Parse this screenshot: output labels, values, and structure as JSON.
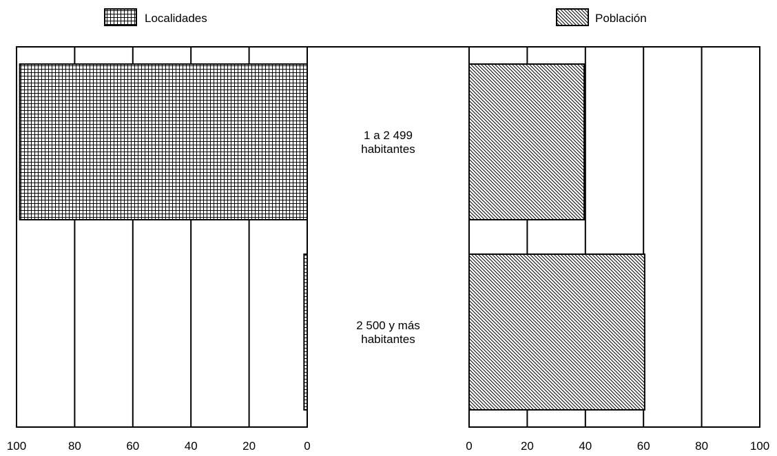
{
  "chart_data": {
    "type": "bar",
    "orientation": "horizontal",
    "layout": "back-to-back",
    "categories": [
      [
        "1 a 2 499",
        "habitantes"
      ],
      [
        "2 500 y más",
        "habitantes"
      ]
    ],
    "series": [
      {
        "name": "Localidades",
        "side": "left",
        "pattern": "crosshatch-grid",
        "values": [
          98.9,
          1.1
        ]
      },
      {
        "name": "Población",
        "side": "right",
        "pattern": "diagonal-hatch",
        "values": [
          39.6,
          60.4
        ]
      }
    ],
    "xlim": [
      0,
      100
    ],
    "tick_labels_left": [
      "100",
      "80",
      "60",
      "40",
      "20",
      "0"
    ],
    "tick_labels_right": [
      "0",
      "20",
      "40",
      "60",
      "80",
      "100"
    ],
    "grid": true,
    "legend_placement": "top",
    "colors": {
      "bar_fill": "#ffffff",
      "pattern": "#000000",
      "frame": "#000000"
    }
  }
}
